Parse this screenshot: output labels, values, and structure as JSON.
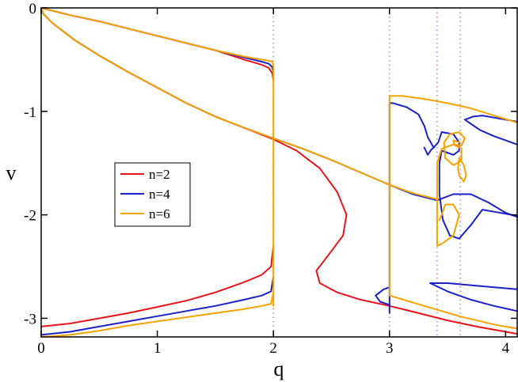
{
  "chart_data": {
    "type": "line",
    "xlabel": "q",
    "ylabel": "v",
    "xlim": [
      0,
      4.1
    ],
    "ylim": [
      -3.18,
      0
    ],
    "xticks": [
      0,
      1,
      2,
      3,
      4
    ],
    "yticks": [
      0,
      -1,
      -2,
      -3
    ],
    "xtick_labels": [
      "0",
      "1",
      "2",
      "3",
      "4"
    ],
    "ytick_labels": [
      "0",
      "-1",
      "-2",
      "-3"
    ],
    "grid": false,
    "legend_position": "center-left",
    "vlines": [
      2.0,
      3.0,
      3.41,
      3.61
    ],
    "series": [
      {
        "name": "n=2",
        "color": "#e8141b",
        "segments": [
          [
            [
              0,
              0
            ],
            [
              0.25,
              -0.07
            ],
            [
              0.5,
              -0.13
            ],
            [
              0.75,
              -0.2
            ],
            [
              1,
              -0.27
            ],
            [
              1.25,
              -0.34
            ],
            [
              1.5,
              -0.41
            ],
            [
              1.75,
              -0.5
            ],
            [
              1.9,
              -0.55
            ],
            [
              1.96,
              -0.58
            ],
            [
              1.99,
              -0.63
            ],
            [
              2.0,
              -0.7
            ]
          ],
          [
            [
              0,
              0
            ],
            [
              0.02,
              -0.06
            ],
            [
              0.1,
              -0.15
            ],
            [
              0.3,
              -0.32
            ],
            [
              0.5,
              -0.46
            ],
            [
              0.75,
              -0.62
            ],
            [
              1.0,
              -0.77
            ],
            [
              1.25,
              -0.92
            ],
            [
              1.5,
              -1.05
            ],
            [
              1.75,
              -1.16
            ],
            [
              2.0,
              -1.27
            ],
            [
              2.2,
              -1.38
            ],
            [
              2.4,
              -1.55
            ],
            [
              2.55,
              -1.78
            ],
            [
              2.63,
              -2.0
            ],
            [
              2.6,
              -2.2
            ],
            [
              2.48,
              -2.38
            ],
            [
              2.37,
              -2.54
            ],
            [
              2.4,
              -2.66
            ],
            [
              2.55,
              -2.75
            ],
            [
              2.75,
              -2.82
            ],
            [
              3.0,
              -2.88
            ],
            [
              3.25,
              -2.95
            ],
            [
              3.5,
              -3.02
            ],
            [
              3.75,
              -3.08
            ],
            [
              4.1,
              -3.15
            ]
          ],
          [
            [
              0,
              -3.08
            ],
            [
              0.25,
              -3.05
            ],
            [
              0.5,
              -3.0
            ],
            [
              0.75,
              -2.95
            ],
            [
              1.0,
              -2.89
            ],
            [
              1.25,
              -2.83
            ],
            [
              1.5,
              -2.75
            ],
            [
              1.75,
              -2.65
            ],
            [
              1.9,
              -2.58
            ],
            [
              1.98,
              -2.5
            ],
            [
              2.0,
              -2.3
            ]
          ]
        ]
      },
      {
        "name": "n=4",
        "color": "#1922c8",
        "segments": [
          [
            [
              0,
              0
            ],
            [
              0.25,
              -0.07
            ],
            [
              0.5,
              -0.13
            ],
            [
              0.75,
              -0.2
            ],
            [
              1,
              -0.27
            ],
            [
              1.25,
              -0.34
            ],
            [
              1.5,
              -0.41
            ],
            [
              1.75,
              -0.48
            ],
            [
              1.9,
              -0.52
            ],
            [
              1.96,
              -0.54
            ],
            [
              1.99,
              -0.57
            ],
            [
              2.0,
              -0.62
            ]
          ],
          [
            [
              0,
              0
            ],
            [
              0.02,
              -0.06
            ],
            [
              0.1,
              -0.15
            ],
            [
              0.3,
              -0.32
            ],
            [
              0.5,
              -0.46
            ],
            [
              0.75,
              -0.62
            ],
            [
              1.0,
              -0.77
            ],
            [
              1.25,
              -0.92
            ],
            [
              1.5,
              -1.05
            ],
            [
              1.75,
              -1.16
            ],
            [
              2.0,
              -1.26
            ],
            [
              2.25,
              -1.36
            ],
            [
              2.5,
              -1.47
            ],
            [
              2.75,
              -1.59
            ],
            [
              3.0,
              -1.71
            ],
            [
              3.2,
              -1.8
            ],
            [
              3.41,
              -1.86
            ]
          ],
          [
            [
              3.41,
              -1.86
            ],
            [
              3.55,
              -1.8
            ],
            [
              3.7,
              -1.8
            ],
            [
              3.85,
              -1.88
            ],
            [
              4.0,
              -1.98
            ],
            [
              4.1,
              -2.02
            ]
          ],
          [
            [
              0,
              -3.16
            ],
            [
              0.25,
              -3.13
            ],
            [
              0.5,
              -3.08
            ],
            [
              0.75,
              -3.03
            ],
            [
              1.0,
              -2.98
            ],
            [
              1.25,
              -2.93
            ],
            [
              1.5,
              -2.88
            ],
            [
              1.75,
              -2.82
            ],
            [
              1.9,
              -2.78
            ],
            [
              1.98,
              -2.74
            ],
            [
              2.0,
              -2.6
            ]
          ],
          [
            [
              3.0,
              -2.95
            ],
            [
              3.0,
              -2.5
            ],
            [
              3.0,
              -1.8
            ],
            [
              3.0,
              -1.3
            ],
            [
              3.0,
              -0.92
            ],
            [
              3.03,
              -0.92
            ],
            [
              3.15,
              -0.96
            ],
            [
              3.25,
              -1.03
            ],
            [
              3.3,
              -1.14
            ],
            [
              3.33,
              -1.25
            ],
            [
              3.38,
              -1.35
            ],
            [
              3.42,
              -1.3
            ],
            [
              3.45,
              -1.2
            ],
            [
              3.55,
              -1.22
            ],
            [
              3.6,
              -1.3
            ],
            [
              3.6,
              -1.38
            ],
            [
              3.55,
              -1.42
            ],
            [
              3.45,
              -1.38
            ],
            [
              3.43,
              -1.5
            ],
            [
              3.43,
              -1.8
            ],
            [
              3.46,
              -2.05
            ],
            [
              3.52,
              -2.2
            ],
            [
              3.6,
              -2.23
            ],
            [
              3.7,
              -2.1
            ],
            [
              3.8,
              -1.95
            ],
            [
              3.9,
              -1.97
            ],
            [
              4.0,
              -1.99
            ],
            [
              4.1,
              -2.01
            ]
          ],
          [
            [
              3.3,
              -1.35
            ],
            [
              3.33,
              -1.42
            ],
            [
              3.36,
              -1.37
            ],
            [
              3.38,
              -1.35
            ]
          ],
          [
            [
              3.65,
              -1.08
            ],
            [
              3.72,
              -1.05
            ],
            [
              3.8,
              -1.04
            ],
            [
              3.9,
              -1.06
            ],
            [
              4.0,
              -1.08
            ],
            [
              4.1,
              -1.1
            ]
          ],
          [
            [
              3.65,
              -1.08
            ],
            [
              3.7,
              -1.12
            ],
            [
              3.78,
              -1.18
            ],
            [
              3.9,
              -1.24
            ],
            [
              4.0,
              -1.28
            ],
            [
              4.1,
              -1.32
            ]
          ],
          [
            [
              3.0,
              -2.7
            ],
            [
              2.95,
              -2.72
            ],
            [
              2.88,
              -2.78
            ],
            [
              2.92,
              -2.84
            ],
            [
              3.0,
              -2.87
            ]
          ],
          [
            [
              3.35,
              -2.66
            ],
            [
              3.5,
              -2.66
            ],
            [
              3.7,
              -2.68
            ],
            [
              3.9,
              -2.7
            ],
            [
              4.1,
              -2.72
            ]
          ],
          [
            [
              3.35,
              -2.66
            ],
            [
              3.5,
              -2.74
            ],
            [
              3.7,
              -2.82
            ],
            [
              3.9,
              -2.88
            ],
            [
              4.1,
              -2.93
            ]
          ]
        ]
      },
      {
        "name": "n=6",
        "color": "#f5a300",
        "segments": [
          [
            [
              0,
              0
            ],
            [
              0.25,
              -0.07
            ],
            [
              0.5,
              -0.13
            ],
            [
              0.75,
              -0.2
            ],
            [
              1,
              -0.27
            ],
            [
              1.25,
              -0.34
            ],
            [
              1.5,
              -0.41
            ],
            [
              1.75,
              -0.47
            ],
            [
              1.9,
              -0.5
            ],
            [
              1.96,
              -0.51
            ],
            [
              1.99,
              -0.52
            ],
            [
              2.0,
              -0.55
            ]
          ],
          [
            [
              0,
              0
            ],
            [
              0.02,
              -0.06
            ],
            [
              0.1,
              -0.15
            ],
            [
              0.3,
              -0.32
            ],
            [
              0.5,
              -0.46
            ],
            [
              0.75,
              -0.62
            ],
            [
              1.0,
              -0.77
            ],
            [
              1.25,
              -0.92
            ],
            [
              1.5,
              -1.05
            ],
            [
              1.75,
              -1.16
            ],
            [
              2.0,
              -1.26
            ],
            [
              2.25,
              -1.36
            ],
            [
              2.5,
              -1.47
            ],
            [
              2.75,
              -1.59
            ],
            [
              3.0,
              -1.71
            ],
            [
              3.2,
              -1.79
            ],
            [
              3.41,
              -1.85
            ]
          ],
          [
            [
              2.0,
              -0.55
            ],
            [
              2.0,
              -1.2
            ],
            [
              2.0,
              -2.0
            ],
            [
              2.0,
              -2.88
            ]
          ],
          [
            [
              0,
              -3.18
            ],
            [
              0.25,
              -3.16
            ],
            [
              0.5,
              -3.12
            ],
            [
              0.75,
              -3.07
            ],
            [
              1.0,
              -3.03
            ],
            [
              1.25,
              -2.99
            ],
            [
              1.5,
              -2.95
            ],
            [
              1.75,
              -2.91
            ],
            [
              1.9,
              -2.88
            ],
            [
              1.98,
              -2.86
            ],
            [
              2.0,
              -2.75
            ]
          ],
          [
            [
              3.0,
              -2.78
            ],
            [
              3.0,
              -2.2
            ],
            [
              3.0,
              -1.5
            ],
            [
              3.0,
              -0.85
            ],
            [
              3.1,
              -0.85
            ],
            [
              3.3,
              -0.88
            ],
            [
              3.5,
              -0.92
            ],
            [
              3.7,
              -0.97
            ],
            [
              3.9,
              -1.04
            ],
            [
              4.1,
              -1.11
            ]
          ],
          [
            [
              3.0,
              -2.78
            ],
            [
              3.3,
              -2.88
            ],
            [
              3.6,
              -2.98
            ],
            [
              3.9,
              -3.06
            ],
            [
              4.1,
              -3.1
            ]
          ],
          [
            [
              3.41,
              -1.85
            ],
            [
              3.41,
              -1.5
            ],
            [
              3.45,
              -1.36
            ],
            [
              3.55,
              -1.32
            ],
            [
              3.62,
              -1.36
            ],
            [
              3.62,
              -1.48
            ],
            [
              3.55,
              -1.52
            ],
            [
              3.48,
              -1.45
            ],
            [
              3.47,
              -1.3
            ],
            [
              3.52,
              -1.22
            ],
            [
              3.6,
              -1.2
            ],
            [
              3.65,
              -1.26
            ],
            [
              3.62,
              -1.33
            ],
            [
              3.56,
              -1.32
            ],
            [
              3.55,
              -1.28
            ],
            [
              3.6,
              -1.3
            ]
          ],
          [
            [
              3.41,
              -1.85
            ],
            [
              3.41,
              -2.3
            ],
            [
              3.45,
              -2.28
            ],
            [
              3.55,
              -2.2
            ],
            [
              3.6,
              -2.0
            ],
            [
              3.55,
              -1.9
            ],
            [
              3.48,
              -1.9
            ],
            [
              3.45,
              -2.0
            ],
            [
              3.43,
              -2.05
            ]
          ],
          [
            [
              3.6,
              -1.45
            ],
            [
              3.64,
              -1.52
            ],
            [
              3.66,
              -1.62
            ],
            [
              3.64,
              -1.68
            ],
            [
              3.6,
              -1.62
            ],
            [
              3.59,
              -1.55
            ],
            [
              3.6,
              -1.45
            ]
          ]
        ]
      }
    ]
  }
}
